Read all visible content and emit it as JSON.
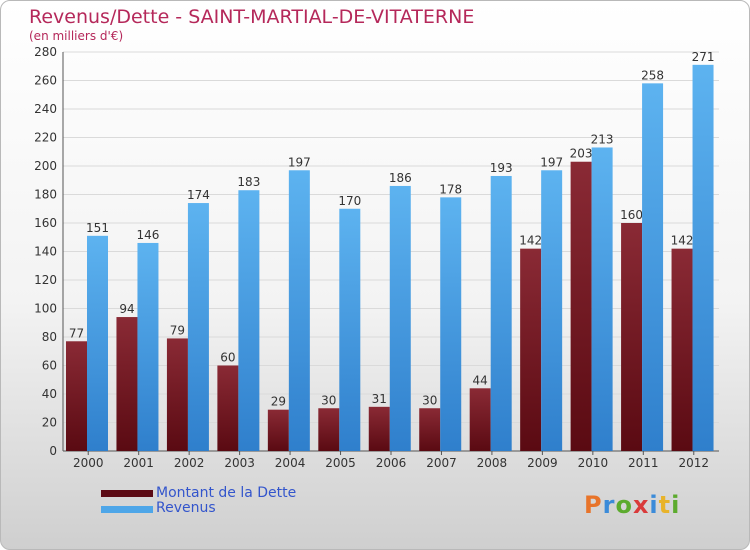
{
  "header": {
    "title": "Revenus/Dette - SAINT-MARTIAL-DE-VITATERNE",
    "subtitle": "(en milliers d'€)"
  },
  "legend": {
    "debt_label": "Montant de la Dette",
    "revenue_label": "Revenus"
  },
  "logo": {
    "text": "Proxiti"
  },
  "colors": {
    "debt": "#7a1f2b",
    "revenue": "#4ea6e8",
    "title": "#b5285a"
  },
  "chart_data": {
    "type": "bar",
    "title": "Revenus/Dette - SAINT-MARTIAL-DE-VITATERNE",
    "subtitle": "(en milliers d'€)",
    "categories": [
      "2000",
      "2001",
      "2002",
      "2003",
      "2004",
      "2005",
      "2006",
      "2007",
      "2008",
      "2009",
      "2010",
      "2011",
      "2012"
    ],
    "series": [
      {
        "name": "Montant de la Dette",
        "values": [
          77,
          94,
          79,
          60,
          29,
          30,
          31,
          30,
          44,
          142,
          203,
          160,
          142
        ]
      },
      {
        "name": "Revenus",
        "values": [
          151,
          146,
          174,
          183,
          197,
          170,
          186,
          178,
          193,
          197,
          213,
          258,
          271
        ]
      }
    ],
    "ylim": [
      0,
      280
    ],
    "yticks": [
      0,
      20,
      40,
      60,
      80,
      100,
      120,
      140,
      160,
      180,
      200,
      220,
      240,
      260,
      280
    ],
    "grid": true,
    "legend_position": "bottom-left"
  }
}
